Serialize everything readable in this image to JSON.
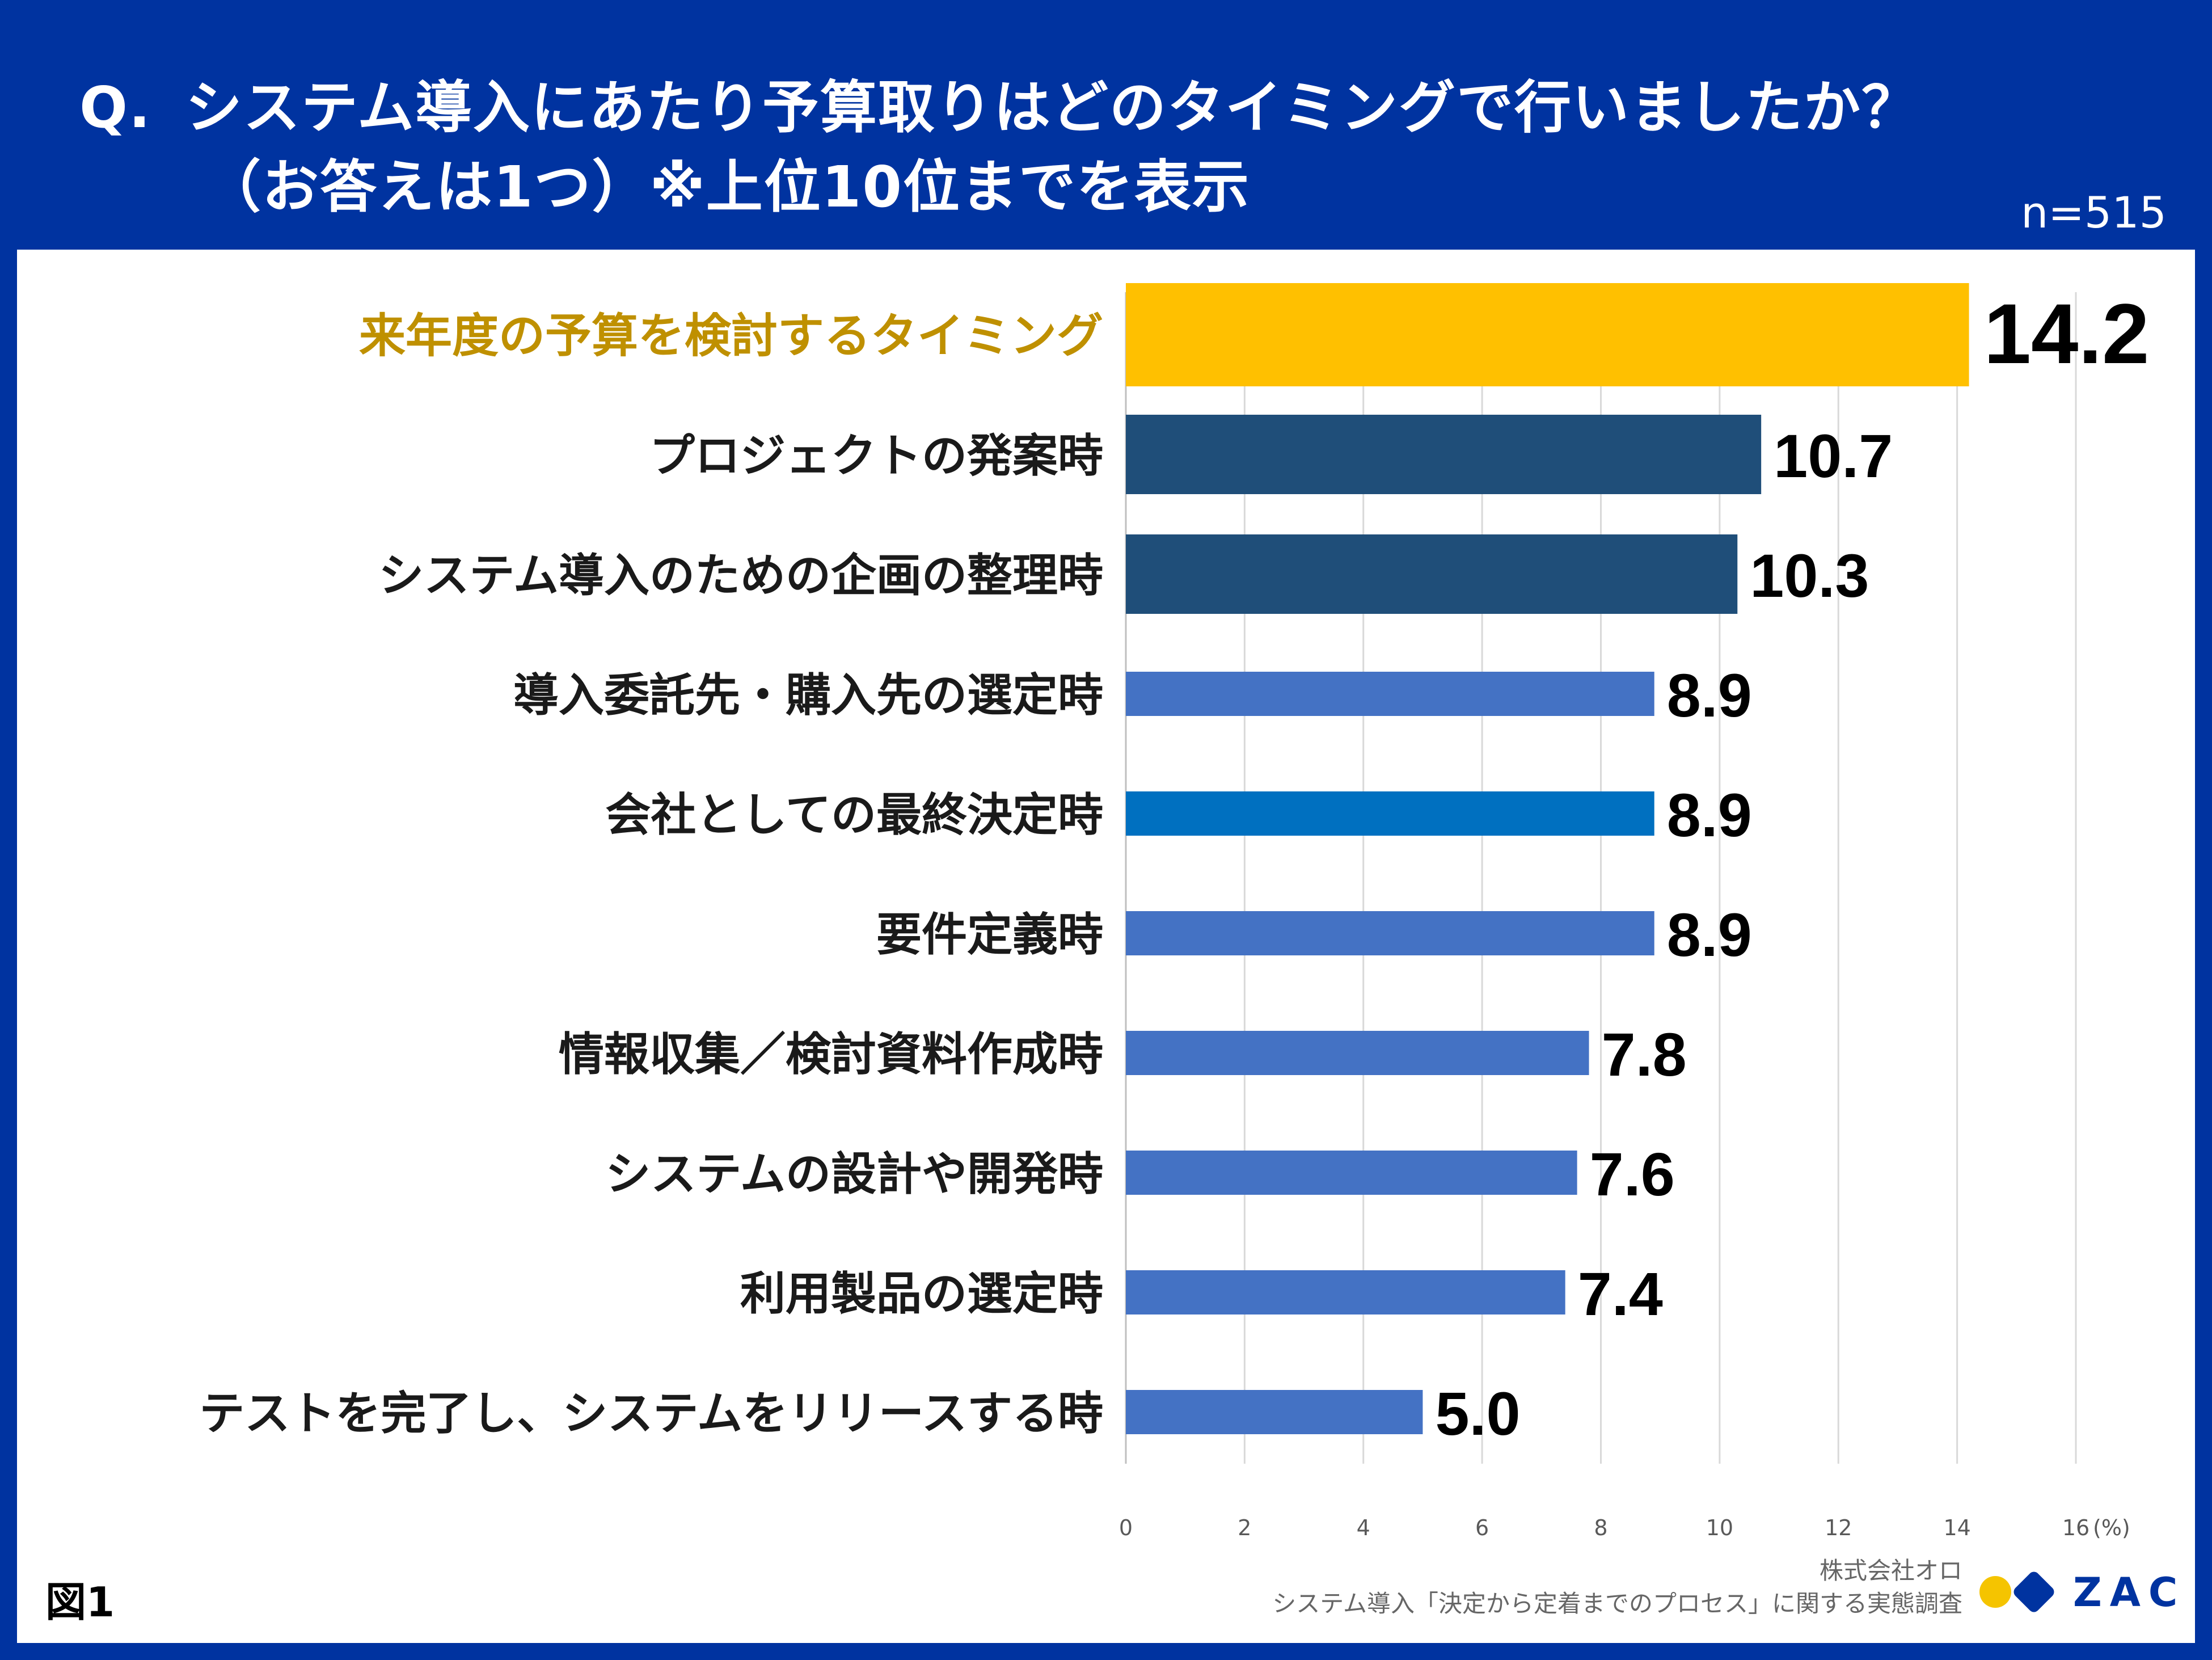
{
  "title": {
    "q_prefix": "Q.",
    "line1": "システム導入にあたり予算取りはどのタイミングで行いましたか？",
    "line2": "（お答えは1つ）※上位10位までを表示",
    "sample_size": "n=515"
  },
  "chart_data": {
    "type": "bar",
    "orientation": "horizontal",
    "unit": "(%)",
    "xlim": [
      0,
      16
    ],
    "ticks": [
      0,
      2,
      4,
      6,
      8,
      10,
      12,
      14,
      16
    ],
    "gridlines": true,
    "categories": [
      "来年度の予算を検討するタイミング",
      "プロジェクトの発案時",
      "システム導入のための企画の整理時",
      "導入委託先・購入先の選定時",
      "会社としての最終決定時",
      "要件定義時",
      "情報収集／検討資料作成時",
      "システムの設計や開発時",
      "利用製品の選定時",
      "テストを完了し、システムをリリースする時"
    ],
    "values": [
      14.2,
      10.7,
      10.3,
      8.9,
      8.9,
      8.9,
      7.8,
      7.6,
      7.4,
      5.0
    ],
    "value_labels": [
      "14.2",
      "10.7",
      "10.3",
      "8.9",
      "8.9",
      "8.9",
      "7.8",
      "7.6",
      "7.4",
      "5.0"
    ],
    "colors": [
      "#ffc000",
      "#1f4e79",
      "#1f4e79",
      "#4472c4",
      "#0070c0",
      "#4472c4",
      "#4472c4",
      "#4472c4",
      "#4472c4",
      "#4472c4"
    ],
    "highlight_label_color": "#bf9000",
    "label_color": "#1a1a1a"
  },
  "footer": {
    "figure_label": "図1",
    "company": "株式会社オロ",
    "survey": "システム導入「決定から定着までのプロセス」に関する実態調査",
    "logo_text": "ZAC"
  }
}
